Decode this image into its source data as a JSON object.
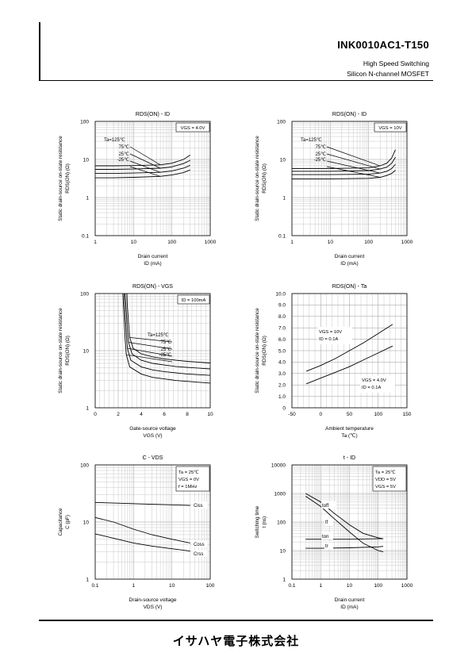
{
  "header": {
    "model": "INK0010AC1-T150",
    "subtitle1": "High Speed Switching",
    "subtitle2": "Silicon N-channel MOSFET"
  },
  "footer": {
    "company": "イサハヤ電子株式会社"
  },
  "chart_data": [
    {
      "id": "rds-id-4v",
      "type": "line",
      "title": "RDS(ON) - ID",
      "xlabel": [
        "Drain current",
        "ID (mA)"
      ],
      "ylabel": [
        "Static drain-source on-state resistance",
        "RDS(ON) (Ω)"
      ],
      "xscale": "log",
      "yscale": "log",
      "xlim": [
        1,
        1000
      ],
      "ylim": [
        0.1,
        100
      ],
      "xticks": [
        1,
        10,
        100,
        1000
      ],
      "xticklabels": [
        "1",
        "10",
        "100",
        "1000"
      ],
      "yticks": [
        0.1,
        1,
        10,
        100
      ],
      "yticklabels": [
        "0.1",
        "1",
        "10",
        "100"
      ],
      "grid": true,
      "legend_box": "VGS = 4.0V",
      "condition_header": "Ta=",
      "series": [
        {
          "name": "125℃",
          "x": [
            1,
            3,
            10,
            50,
            100,
            200,
            300
          ],
          "y": [
            6.8,
            6.8,
            6.9,
            7.2,
            8,
            10,
            13
          ]
        },
        {
          "name": "75℃",
          "x": [
            1,
            3,
            10,
            50,
            100,
            200,
            300
          ],
          "y": [
            5.5,
            5.5,
            5.6,
            5.9,
            6.4,
            7.8,
            9.5
          ]
        },
        {
          "name": "25℃",
          "x": [
            1,
            3,
            10,
            50,
            100,
            200,
            300
          ],
          "y": [
            4.3,
            4.3,
            4.4,
            4.6,
            5,
            5.9,
            7
          ]
        },
        {
          "name": "-25℃",
          "x": [
            1,
            3,
            10,
            50,
            100,
            200,
            300
          ],
          "y": [
            3.3,
            3.3,
            3.4,
            3.6,
            3.9,
            4.5,
            5.3
          ]
        }
      ]
    },
    {
      "id": "rds-id-10v",
      "type": "line",
      "title": "RDS(ON) - ID",
      "xlabel": [
        "Drain current",
        "ID (mA)"
      ],
      "ylabel": [
        "Static drain-source on-state resistance",
        "RDS(ON) (Ω)"
      ],
      "xscale": "log",
      "yscale": "log",
      "xlim": [
        1,
        1000
      ],
      "ylim": [
        0.1,
        100
      ],
      "xticks": [
        1,
        10,
        100,
        1000
      ],
      "xticklabels": [
        "1",
        "10",
        "100",
        "1000"
      ],
      "yticks": [
        0.1,
        1,
        10,
        100
      ],
      "yticklabels": [
        "0.1",
        "1",
        "10",
        "100"
      ],
      "grid": true,
      "legend_box": "VGS = 10V",
      "condition_header": "Ta=",
      "series": [
        {
          "name": "125℃",
          "x": [
            1,
            10,
            100,
            200,
            300,
            400,
            500
          ],
          "y": [
            5.8,
            5.8,
            6,
            6.8,
            8,
            11,
            18
          ]
        },
        {
          "name": "75℃",
          "x": [
            1,
            10,
            100,
            200,
            300,
            400,
            500
          ],
          "y": [
            4.9,
            4.9,
            5.1,
            5.6,
            6.3,
            8,
            11.5
          ]
        },
        {
          "name": "25℃",
          "x": [
            1,
            10,
            100,
            200,
            300,
            400,
            500
          ],
          "y": [
            4,
            4,
            4.1,
            4.4,
            4.9,
            5.8,
            7.5
          ]
        },
        {
          "name": "-25℃",
          "x": [
            1,
            10,
            100,
            200,
            300,
            400,
            500
          ],
          "y": [
            3.1,
            3.1,
            3.2,
            3.4,
            3.8,
            4.3,
            5.2
          ]
        }
      ]
    },
    {
      "id": "rds-vgs",
      "type": "line",
      "title": "RDS(ON) - VGS",
      "xlabel": [
        "Gate-source voltage",
        "VGS (V)"
      ],
      "ylabel": [
        "Static drain-source on-state resistance",
        "RDS(ON) (Ω)"
      ],
      "xscale": "linear",
      "yscale": "log",
      "xlim": [
        0,
        10
      ],
      "ylim": [
        1,
        100
      ],
      "xticks": [
        0,
        2,
        4,
        6,
        8,
        10
      ],
      "xticklabels": [
        "0",
        "2",
        "4",
        "6",
        "8",
        "10"
      ],
      "yticks": [
        1,
        10,
        100
      ],
      "yticklabels": [
        "1",
        "10",
        "100"
      ],
      "grid": true,
      "legend_box": "ID = 100mA",
      "condition_header": "Ta=",
      "series": [
        {
          "name": "125℃",
          "x": [
            2.75,
            2.8,
            2.9,
            3.0,
            3.3,
            4,
            5,
            6,
            7,
            8,
            10
          ],
          "y": [
            100,
            60,
            30,
            17,
            11,
            8.8,
            7.8,
            7.2,
            6.8,
            6.5,
            6.1
          ]
        },
        {
          "name": "75℃",
          "x": [
            2.6,
            2.7,
            2.8,
            2.9,
            3.2,
            4,
            5,
            6,
            7,
            8,
            10
          ],
          "y": [
            100,
            50,
            24,
            14,
            8.8,
            6.8,
            6.0,
            5.6,
            5.3,
            5.1,
            4.8
          ]
        },
        {
          "name": "25℃",
          "x": [
            2.5,
            2.6,
            2.7,
            2.8,
            3.1,
            4,
            5,
            6,
            7,
            8,
            10
          ],
          "y": [
            100,
            45,
            20,
            11,
            6.8,
            5.2,
            4.6,
            4.3,
            4.1,
            3.9,
            3.7
          ]
        },
        {
          "name": "-25℃",
          "x": [
            2.4,
            2.5,
            2.6,
            2.7,
            3.0,
            4,
            5,
            6,
            7,
            8,
            10
          ],
          "y": [
            100,
            40,
            16,
            8.5,
            5.2,
            3.9,
            3.4,
            3.2,
            3.0,
            2.9,
            2.7
          ]
        }
      ]
    },
    {
      "id": "rds-ta",
      "type": "line",
      "title": "RDS(ON) - Ta",
      "xlabel": [
        "Ambient temperature",
        "Ta (℃)"
      ],
      "ylabel": [
        "Static drain-source on-state resistance",
        "RDS(ON) (Ω)"
      ],
      "xscale": "linear",
      "yscale": "linear",
      "xlim": [
        -50,
        150
      ],
      "ylim": [
        0,
        10
      ],
      "xticks": [
        -50,
        0,
        50,
        100,
        150
      ],
      "xticklabels": [
        "-50",
        "0",
        "50",
        "100",
        "150"
      ],
      "yticks": [
        0,
        1,
        2,
        3,
        4,
        5,
        6,
        7,
        8,
        9,
        10
      ],
      "yticklabels": [
        "0",
        "1.0",
        "2.0",
        "3.0",
        "4.0",
        "5.0",
        "6.0",
        "7.0",
        "8.0",
        "9.0",
        "10.0"
      ],
      "grid": true,
      "series": [
        {
          "name": "VGS = 10V / ID = 0.1A",
          "x": [
            -25,
            0,
            25,
            50,
            75,
            100,
            125
          ],
          "y": [
            3.2,
            3.7,
            4.3,
            5.0,
            5.7,
            6.5,
            7.3
          ]
        },
        {
          "name": "VGS = 4.0V / ID = 0.1A",
          "x": [
            -25,
            0,
            25,
            50,
            75,
            100,
            125
          ],
          "y": [
            2.1,
            2.6,
            3.1,
            3.6,
            4.2,
            4.8,
            5.4
          ]
        }
      ],
      "annotations": [
        {
          "lines": [
            "VGS = 10V",
            "ID = 0.1A"
          ]
        },
        {
          "lines": [
            "VGS = 4.0V",
            "ID = 0.1A"
          ]
        }
      ]
    },
    {
      "id": "c-vds",
      "type": "line",
      "title": "C - VDS",
      "xlabel": [
        "Drain-source voltage",
        "VDS (V)"
      ],
      "ylabel": [
        "Capacitance",
        "C (pF)"
      ],
      "xscale": "log",
      "yscale": "log",
      "xlim": [
        0.1,
        100
      ],
      "ylim": [
        1,
        100
      ],
      "xticks": [
        0.1,
        1,
        10,
        100
      ],
      "xticklabels": [
        "0.1",
        "1",
        "10",
        "100"
      ],
      "yticks": [
        1,
        10,
        100
      ],
      "yticklabels": [
        "1",
        "10",
        "100"
      ],
      "grid": true,
      "legend_box_lines": [
        "Ta = 25℃",
        "VGS = 0V",
        "f = 1MHz"
      ],
      "series": [
        {
          "name": "Ciss",
          "x": [
            0.1,
            0.3,
            1,
            3,
            10,
            30
          ],
          "y": [
            22,
            21.5,
            21,
            20.5,
            20,
            19.5
          ]
        },
        {
          "name": "Coss",
          "x": [
            0.1,
            0.3,
            1,
            3,
            10,
            30
          ],
          "y": [
            12,
            10,
            7.5,
            6,
            5,
            4.3
          ]
        },
        {
          "name": "Crss",
          "x": [
            0.1,
            0.3,
            1,
            3,
            10,
            30
          ],
          "y": [
            6.2,
            5.2,
            4.3,
            3.8,
            3.4,
            3.1
          ]
        }
      ]
    },
    {
      "id": "t-id",
      "type": "line",
      "title": "t - ID",
      "xlabel": [
        "Drain current",
        "ID (mA)"
      ],
      "ylabel": [
        "Switching time",
        "t (ns)"
      ],
      "xscale": "log",
      "yscale": "log",
      "xlim": [
        0.1,
        1000
      ],
      "ylim": [
        1,
        10000
      ],
      "xticks": [
        0.1,
        1,
        10,
        100,
        1000
      ],
      "xticklabels": [
        "0.1",
        "1",
        "10",
        "100",
        "1000"
      ],
      "yticks": [
        1,
        10,
        100,
        1000,
        10000
      ],
      "yticklabels": [
        "1",
        "10",
        "100",
        "1000",
        "10000"
      ],
      "grid": true,
      "legend_box_lines": [
        "Ta = 25℃",
        "VDD = 5V",
        "VGS = 5V"
      ],
      "series": [
        {
          "name": "toff",
          "x": [
            0.3,
            1,
            3,
            10,
            30,
            100,
            150
          ],
          "y": [
            1000,
            500,
            200,
            80,
            40,
            28,
            26
          ]
        },
        {
          "name": "tf",
          "x": [
            0.3,
            1,
            3,
            10,
            30,
            100,
            150
          ],
          "y": [
            800,
            350,
            130,
            45,
            18,
            10,
            9
          ]
        },
        {
          "name": "ton",
          "x": [
            0.3,
            1,
            10,
            100,
            150
          ],
          "y": [
            25,
            25,
            25,
            26,
            26
          ]
        },
        {
          "name": "tr",
          "x": [
            0.3,
            1,
            10,
            100,
            150
          ],
          "y": [
            12,
            12,
            12.5,
            13.5,
            14
          ]
        }
      ]
    }
  ]
}
